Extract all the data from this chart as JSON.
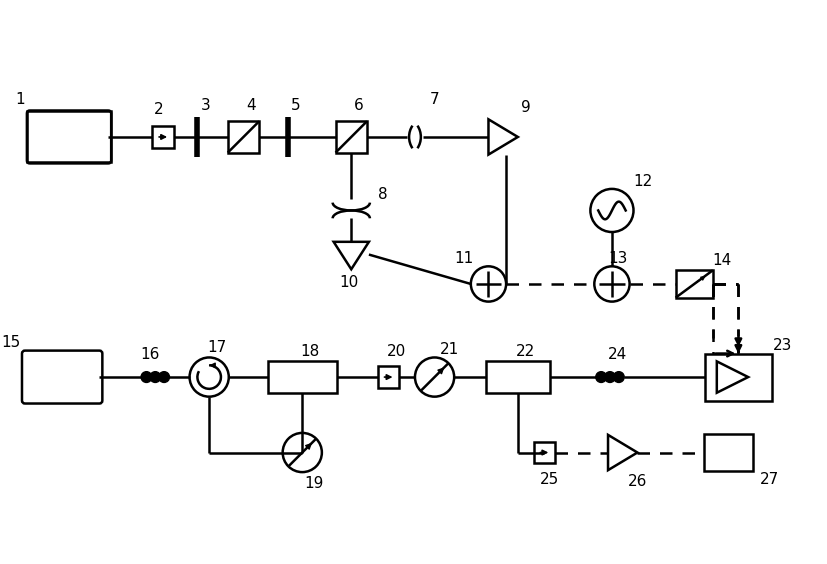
{
  "fig_width": 8.27,
  "fig_height": 5.64,
  "dpi": 100,
  "bg_color": "#ffffff",
  "lc": "#000000",
  "lw": 1.8
}
